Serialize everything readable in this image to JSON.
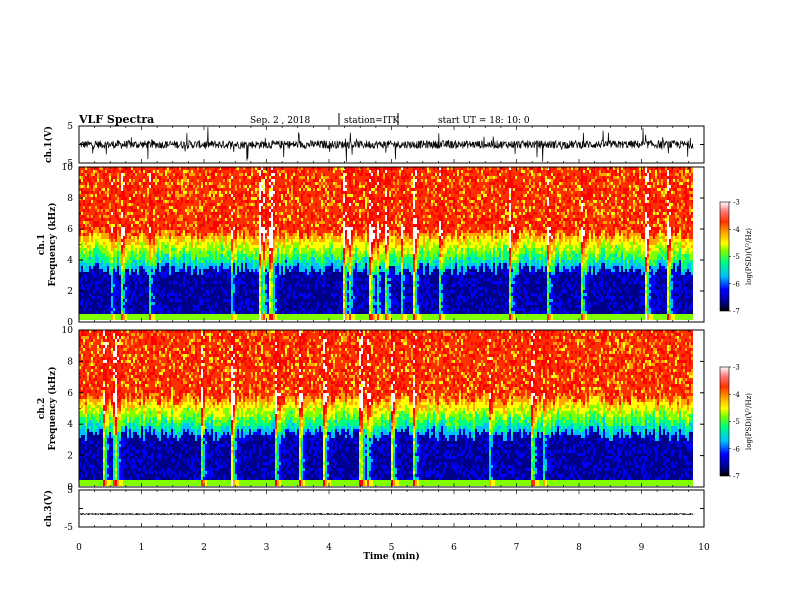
{
  "header": {
    "title": "VLF Spectra",
    "date": "Sep. 2 , 2018",
    "station": "station=ITK",
    "start": "start UT =  18: 10: 0"
  },
  "colors": {
    "spectrum": [
      "#000000",
      "#00008b",
      "#0000ff",
      "#00bfff",
      "#00ff80",
      "#7fff00",
      "#ffff00",
      "#ffa500",
      "#ff3000",
      "#ff0000",
      "#ffffff"
    ]
  },
  "chart_data": [
    {
      "type": "line",
      "panel": "ch1-waveform",
      "ylabel": "ch.1(V)",
      "ylim": [
        -5,
        5
      ],
      "yticks": [
        "5",
        "-5"
      ],
      "baseline": 0
    },
    {
      "type": "heatmap",
      "panel": "ch1-spectrogram",
      "ylabel_line1": "ch.1",
      "ylabel_line2": "Frequency (kHz)",
      "ylim": [
        0,
        10
      ],
      "yticks": [
        "0",
        "2",
        "4",
        "6",
        "8",
        "10"
      ],
      "colorbar": {
        "label": "log(PSD)(V²/Hz)",
        "ticks": [
          "-3",
          "-4",
          "-5",
          "-6",
          "-7"
        ],
        "range": [
          -7,
          -3
        ]
      }
    },
    {
      "type": "heatmap",
      "panel": "ch2-spectrogram",
      "ylabel_line1": "ch.2",
      "ylabel_line2": "Frequency (kHz)",
      "ylim": [
        0,
        10
      ],
      "yticks": [
        "0",
        "2",
        "4",
        "6",
        "8",
        "10"
      ],
      "colorbar": {
        "label": "log(PSD)(V²/Hz)",
        "ticks": [
          "-3",
          "-4",
          "-5",
          "-6",
          "-7"
        ],
        "range": [
          -7,
          -3
        ]
      }
    },
    {
      "type": "line",
      "panel": "ch3-waveform",
      "ylabel": "ch.3(V)",
      "ylim": [
        -5,
        5
      ],
      "yticks": [
        "5",
        "-5"
      ],
      "baseline": -1.5
    }
  ],
  "xaxis": {
    "label": "Time (min)",
    "ticks": [
      "0",
      "1",
      "2",
      "3",
      "4",
      "5",
      "6",
      "7",
      "8",
      "9",
      "10"
    ],
    "range": [
      0,
      10
    ],
    "data_end": 9.83
  }
}
